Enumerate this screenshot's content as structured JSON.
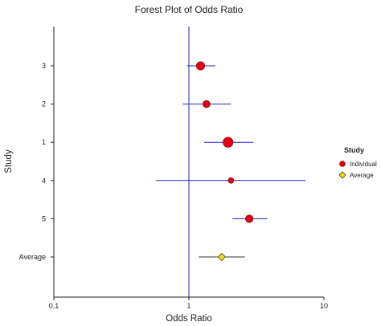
{
  "chart_data": {
    "type": "scatter",
    "title": "Forest Plot of Odds Ratio",
    "xlabel": "Odds Ratio",
    "ylabel": "Study",
    "x_scale": "log",
    "xlim": [
      0.1,
      10
    ],
    "x_ticks": [
      0.1,
      1,
      10
    ],
    "x_tick_labels": [
      "0,1",
      "1",
      "10"
    ],
    "reference_line": 1,
    "categories": [
      "3",
      "2",
      "1",
      "4",
      "5",
      "Average"
    ],
    "series": [
      {
        "name": "Individual",
        "marker": "circle",
        "color": "#e00010",
        "points": [
          {
            "study": "3",
            "or": 1.22,
            "lower": 0.97,
            "upper": 1.57,
            "weight": 0.55
          },
          {
            "study": "2",
            "or": 1.35,
            "lower": 0.9,
            "upper": 2.05,
            "weight": 0.4
          },
          {
            "study": "1",
            "or": 1.95,
            "lower": 1.3,
            "upper": 3.0,
            "weight": 0.75
          },
          {
            "study": "4",
            "or": 2.05,
            "lower": 0.57,
            "upper": 7.3,
            "weight": 0.2
          },
          {
            "study": "5",
            "or": 2.8,
            "lower": 2.1,
            "upper": 3.8,
            "weight": 0.45
          }
        ]
      },
      {
        "name": "Average",
        "marker": "diamond",
        "color": "#f2e200",
        "points": [
          {
            "study": "Average",
            "or": 1.75,
            "lower": 1.18,
            "upper": 2.6
          }
        ]
      }
    ],
    "legend": {
      "title": "Study",
      "position": "right",
      "entries": [
        "Individual",
        "Average"
      ]
    },
    "line_color": "#2222cc"
  }
}
